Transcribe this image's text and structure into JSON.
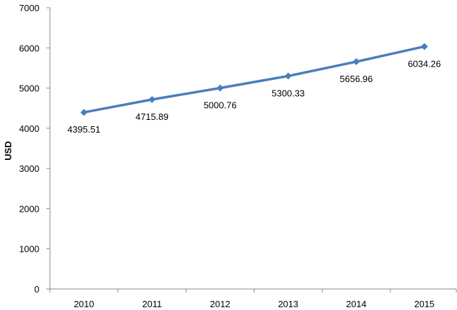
{
  "chart_data": {
    "type": "line",
    "categories": [
      "2010",
      "2011",
      "2012",
      "2013",
      "2014",
      "2015"
    ],
    "series": [
      {
        "values": [
          4395.51,
          4715.89,
          5000.76,
          5300.33,
          5656.96,
          6034.26
        ],
        "data_labels": [
          "4395.51",
          "4715.89",
          "5000.76",
          "5300.33",
          "5656.96",
          "6034.26"
        ],
        "color": "#4a7ebb",
        "marker": "diamond"
      }
    ],
    "title": "",
    "xlabel": "",
    "ylabel": "USD",
    "ylim": [
      0,
      7000
    ],
    "y_ticks": [
      "0",
      "1000",
      "2000",
      "3000",
      "4000",
      "5000",
      "6000",
      "7000"
    ],
    "grid": false,
    "legend": "none"
  }
}
